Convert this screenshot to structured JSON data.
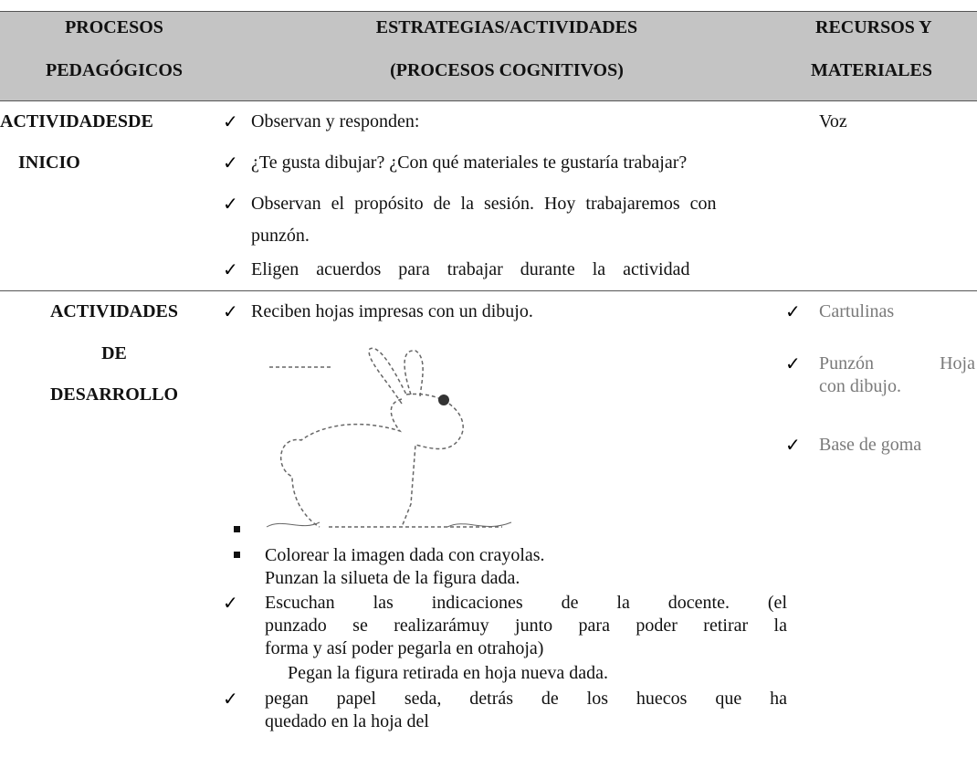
{
  "header": {
    "col1": [
      "PROCESOS",
      "PEDAGÓGICOS"
    ],
    "col2": [
      "ESTRATEGIAS/ACTIVIDADES",
      "(PROCESOS COGNITIVOS)"
    ],
    "col3": [
      "RECURSOS Y",
      "MATERIALES"
    ]
  },
  "rows": [
    {
      "process": [
        "ACTIVIDADESDE",
        "INICIO"
      ],
      "activities": [
        "Observan y responden:",
        "¿Te gusta dibujar? ¿Con qué materiales te gustaría trabajar?",
        "Observan el propósito de la sesión. Hoy trabajaremos con",
        "punzón.",
        "Eligen acuerdos para trabajar durante la actividad"
      ],
      "resources": [
        "Voz"
      ]
    },
    {
      "process": [
        "ACTIVIDADES",
        "DE",
        "DESARROLLO"
      ],
      "activities": [
        "Reciben hojas impresas con un dibujo.",
        "Colorear la imagen dada con crayolas.",
        "Punzan la silueta de la figura dada.",
        "Escuchan las indicaciones de la docente. (el",
        "punzado se realizarámuy junto para poder retirar la",
        "forma y así poder pegarla en otrahoja)",
        "Pegan la figura retirada en hoja nueva dada.",
        "pegan papel seda, detrás de los huecos que ha",
        "quedado en la hoja del"
      ],
      "resources": [
        "Cartulinas",
        "Punzón Hoja",
        "con dibujo.",
        "Base de goma"
      ]
    }
  ]
}
